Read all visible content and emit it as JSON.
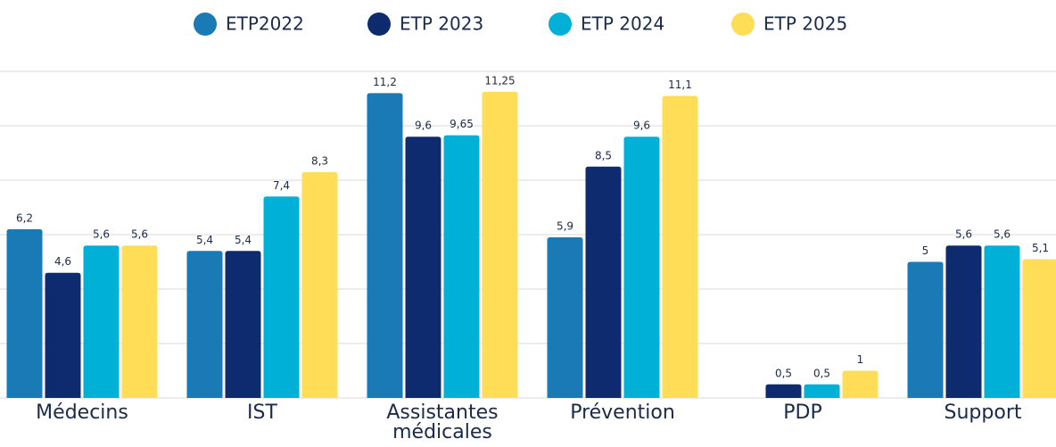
{
  "chart_data": {
    "type": "bar",
    "categories": [
      "Médecins",
      "IST",
      "Assistantes médicales",
      "Prévention",
      "PDP",
      "Support"
    ],
    "series": [
      {
        "name": "ETP2022",
        "color": "#1a7ab5",
        "values": [
          6.2,
          5.4,
          11.2,
          5.9,
          null,
          5
        ],
        "value_labels": [
          "6,2",
          "5,4",
          "11,2",
          "5,9",
          null,
          "5"
        ]
      },
      {
        "name": "ETP 2023",
        "color": "#0d2b6e",
        "values": [
          4.6,
          5.4,
          9.6,
          8.5,
          0.5,
          5.6
        ],
        "value_labels": [
          "4,6",
          "5,4",
          "9,6",
          "8,5",
          "0,5",
          "5,6"
        ]
      },
      {
        "name": "ETP 2024",
        "color": "#00b0d6",
        "values": [
          5.6,
          7.4,
          9.65,
          9.6,
          0.5,
          5.6
        ],
        "value_labels": [
          "5,6",
          "7,4",
          "9,65",
          "9,6",
          "0,5",
          "5,6"
        ]
      },
      {
        "name": "ETP 2025",
        "color": "#ffdd57",
        "values": [
          5.6,
          8.3,
          11.25,
          11.1,
          1,
          5.1
        ],
        "value_labels": [
          "5,6",
          "8,3",
          "11,25",
          "11,1",
          "1",
          "5,1"
        ]
      }
    ],
    "ylim": [
      0,
      12
    ],
    "yticks": [
      0,
      2,
      4,
      6,
      8,
      10,
      12
    ],
    "grid": true,
    "legend": "top"
  }
}
